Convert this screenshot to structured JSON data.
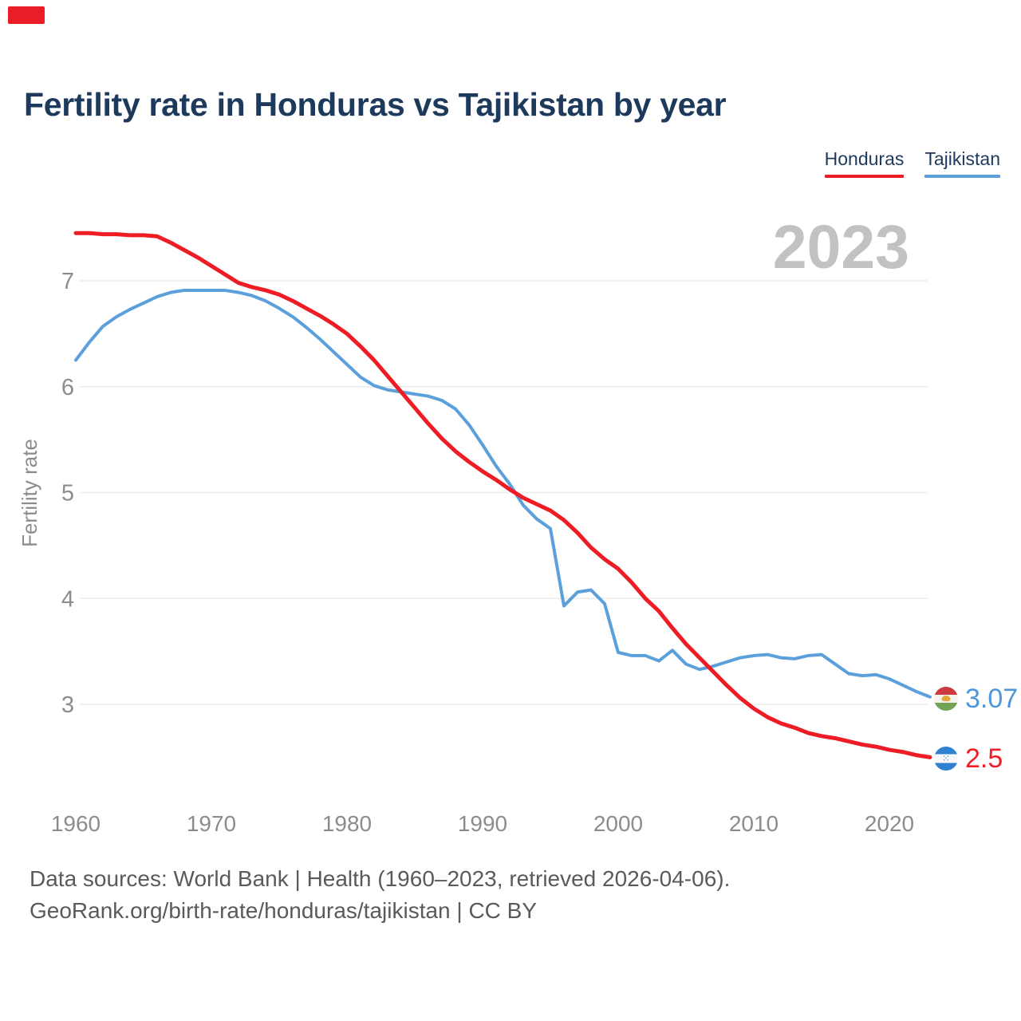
{
  "brand": {
    "logo_icon": "georank-red-logo"
  },
  "title": "Fertility rate in Honduras vs Tajikistan by year",
  "legend": {
    "items": [
      {
        "label": "Honduras",
        "color": "#ee1c25"
      },
      {
        "label": "Tajikistan",
        "color": "#5b9fdb"
      }
    ]
  },
  "watermark": "2023",
  "end_labels": [
    {
      "country": "Tajikistan",
      "value": "3.07",
      "text_color": "#4f97d9",
      "flag_icon": "tajikistan-flag-icon"
    },
    {
      "country": "Honduras",
      "value": "2.5",
      "text_color": "#f01f26",
      "flag_icon": "honduras-flag-icon"
    }
  ],
  "footer": {
    "line1": "Data sources: World Bank | Health (1960–2023, retrieved 2026-04-06).",
    "line2": "GeoRank.org/birth-rate/honduras/tajikistan | CC BY"
  },
  "chart_data": {
    "type": "line",
    "title": "Fertility rate in Honduras vs Tajikistan by year",
    "xlabel": "",
    "ylabel": "Fertility rate",
    "x_ticks": [
      1960,
      1970,
      1980,
      1990,
      2000,
      2010,
      2020
    ],
    "y_ticks": [
      7,
      6,
      5,
      4,
      3
    ],
    "xlim": [
      1960,
      2023
    ],
    "ylim": [
      2.35,
      7.6
    ],
    "grid": "horizontal",
    "legend_position": "top-right",
    "years": [
      1960,
      1961,
      1962,
      1963,
      1964,
      1965,
      1966,
      1967,
      1968,
      1969,
      1970,
      1971,
      1972,
      1973,
      1974,
      1975,
      1976,
      1977,
      1978,
      1979,
      1980,
      1981,
      1982,
      1983,
      1984,
      1985,
      1986,
      1987,
      1988,
      1989,
      1990,
      1991,
      1992,
      1993,
      1994,
      1995,
      1996,
      1997,
      1998,
      1999,
      2000,
      2001,
      2002,
      2003,
      2004,
      2005,
      2006,
      2007,
      2008,
      2009,
      2010,
      2011,
      2012,
      2013,
      2014,
      2015,
      2016,
      2017,
      2018,
      2019,
      2020,
      2021,
      2022,
      2023
    ],
    "series": [
      {
        "name": "Honduras",
        "color": "#ee1c25",
        "stroke_width": 5,
        "end_value": 2.5,
        "values": [
          7.45,
          7.45,
          7.44,
          7.44,
          7.43,
          7.43,
          7.42,
          7.36,
          7.29,
          7.22,
          7.14,
          7.06,
          6.98,
          6.94,
          6.91,
          6.87,
          6.81,
          6.74,
          6.67,
          6.59,
          6.5,
          6.38,
          6.25,
          6.1,
          5.95,
          5.8,
          5.65,
          5.51,
          5.39,
          5.29,
          5.2,
          5.12,
          5.03,
          4.95,
          4.89,
          4.83,
          4.74,
          4.62,
          4.48,
          4.37,
          4.28,
          4.15,
          4.0,
          3.88,
          3.72,
          3.57,
          3.44,
          3.31,
          3.18,
          3.06,
          2.96,
          2.88,
          2.82,
          2.78,
          2.73,
          2.7,
          2.68,
          2.65,
          2.62,
          2.6,
          2.57,
          2.55,
          2.52,
          2.5
        ]
      },
      {
        "name": "Tajikistan",
        "color": "#5b9fdb",
        "stroke_width": 4,
        "end_value": 3.07,
        "values": [
          6.25,
          6.42,
          6.57,
          6.66,
          6.73,
          6.79,
          6.85,
          6.89,
          6.91,
          6.91,
          6.91,
          6.91,
          6.89,
          6.86,
          6.81,
          6.74,
          6.66,
          6.56,
          6.45,
          6.33,
          6.21,
          6.09,
          6.01,
          5.97,
          5.95,
          5.93,
          5.91,
          5.87,
          5.79,
          5.64,
          5.45,
          5.25,
          5.08,
          4.88,
          4.75,
          4.66,
          3.93,
          4.06,
          4.08,
          3.95,
          3.49,
          3.46,
          3.46,
          3.41,
          3.51,
          3.38,
          3.33,
          3.36,
          3.4,
          3.44,
          3.46,
          3.47,
          3.44,
          3.43,
          3.46,
          3.47,
          3.38,
          3.29,
          3.27,
          3.28,
          3.24,
          3.18,
          3.12,
          3.07
        ]
      }
    ]
  }
}
